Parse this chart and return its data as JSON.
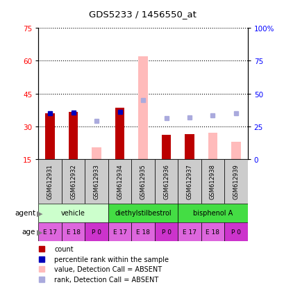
{
  "title": "GDS5233 / 1456550_at",
  "samples": [
    "GSM612931",
    "GSM612932",
    "GSM612933",
    "GSM612934",
    "GSM612935",
    "GSM612936",
    "GSM612937",
    "GSM612938",
    "GSM612939"
  ],
  "count_values": [
    36.0,
    36.5,
    null,
    38.5,
    null,
    26.0,
    26.5,
    null,
    null
  ],
  "rank_values": [
    35.0,
    35.5,
    null,
    36.0,
    null,
    null,
    null,
    null,
    null
  ],
  "absent_value_values": [
    null,
    null,
    20.5,
    null,
    62.0,
    null,
    null,
    27.0,
    23.0
  ],
  "absent_rank_values": [
    null,
    null,
    29.0,
    null,
    45.0,
    31.0,
    31.5,
    33.5,
    35.0
  ],
  "count_color": "#bb0000",
  "rank_color": "#0000bb",
  "absent_value_color": "#ffbbbb",
  "absent_rank_color": "#aaaadd",
  "ylim_left": [
    15,
    75
  ],
  "ylim_right": [
    0,
    100
  ],
  "yticks_left": [
    15,
    30,
    45,
    60,
    75
  ],
  "yticks_right": [
    0,
    25,
    50,
    75,
    100
  ],
  "yticklabels_right": [
    "0",
    "25",
    "50",
    "75",
    "100%"
  ],
  "agent_configs": [
    {
      "label": "vehicle",
      "start": 0,
      "end": 3,
      "color": "#ccffcc"
    },
    {
      "label": "diethylstilbestrol",
      "start": 3,
      "end": 6,
      "color": "#44dd44"
    },
    {
      "label": "bisphenol A",
      "start": 6,
      "end": 9,
      "color": "#44dd44"
    }
  ],
  "age_labels": [
    "E 17",
    "E 18",
    "P 0",
    "E 17",
    "E 18",
    "P 0",
    "E 17",
    "E 18",
    "P 0"
  ],
  "age_colors": [
    "#dd66dd",
    "#dd66dd",
    "#cc33cc",
    "#dd66dd",
    "#dd66dd",
    "#cc33cc",
    "#dd66dd",
    "#dd66dd",
    "#cc33cc"
  ],
  "bar_width": 0.4,
  "background_color": "#ffffff"
}
